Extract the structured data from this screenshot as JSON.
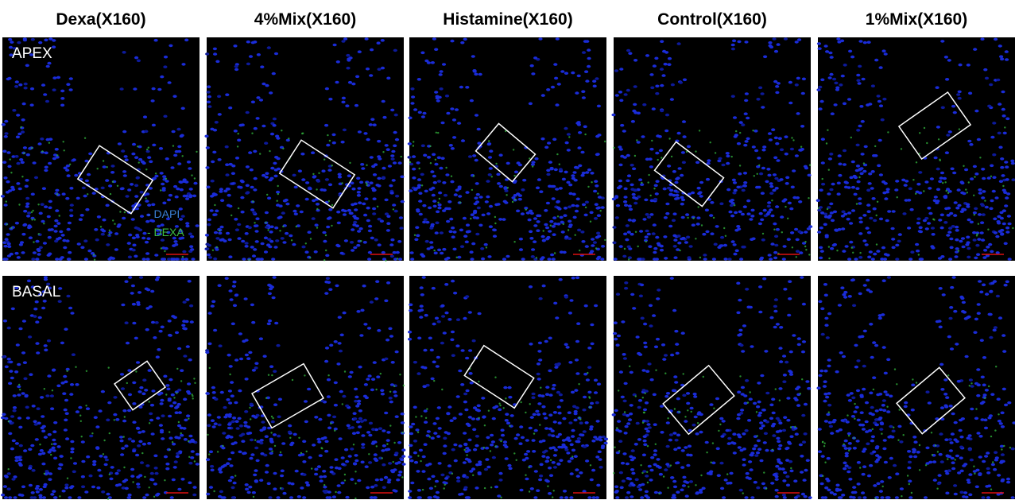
{
  "columns": [
    "Dexa(X160)",
    "4%Mix(X160)",
    "Histamine(X160)",
    "Control(X160)",
    "1%Mix(X160)"
  ],
  "rows": [
    "APEX",
    "BASAL"
  ],
  "legend": [
    "- DAPI",
    "- DEXA"
  ]
}
